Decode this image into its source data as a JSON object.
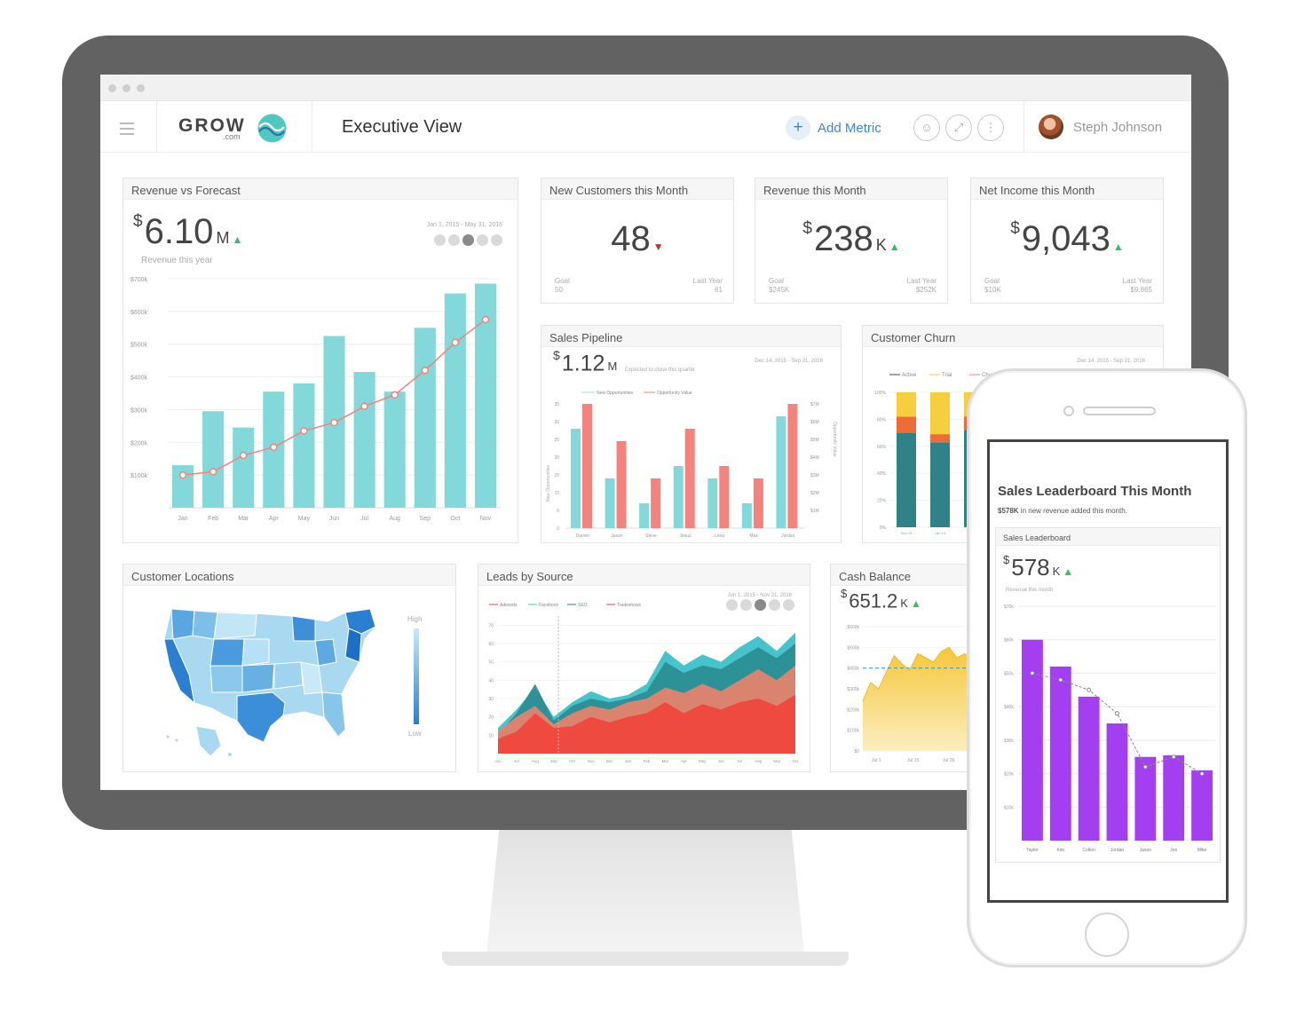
{
  "app": {
    "title": "Executive View",
    "logo_text": "GROW",
    "logo_suffix": ".com",
    "add_metric": "Add Metric",
    "user": "Steph Johnson",
    "header_icons": [
      "user-settings-icon",
      "expand-icon",
      "more-icon"
    ]
  },
  "colors": {
    "teal": "#83d8d9",
    "salmon": "#f4837d",
    "purple": "#a43ff1",
    "red": "#f0453c",
    "yellow": "#f6cf3f",
    "dark_teal": "#2f8286",
    "accent_blue": "#3b86d6",
    "up": "#2ec35b",
    "down": "#e0242c"
  },
  "revenue_forecast": {
    "title": "Revenue vs Forecast",
    "currency": "$",
    "value": "6.10",
    "unit": "M",
    "subtitle": "Revenue this year",
    "date_range": "Jan 1, 2015 - May 31, 2016",
    "range_buttons": [
      "D",
      "W",
      "M",
      "Q",
      "Y"
    ],
    "chart_data": {
      "type": "bar",
      "categories": [
        "Jan",
        "Feb",
        "Mar",
        "Apr",
        "May",
        "Jun",
        "Jul",
        "Aug",
        "Sep",
        "Oct",
        "Nov"
      ],
      "y_ticks": [
        "$700k",
        "$600k",
        "$500k",
        "$400k",
        "$300k",
        "$200k",
        "$100k"
      ],
      "ylim": [
        0,
        700000
      ],
      "series": [
        {
          "values": [
            130000,
            295000,
            245000,
            355000,
            380000,
            525000,
            415000,
            355000,
            550000,
            655000,
            685000
          ]
        },
        {
          "values": [
            100000,
            110000,
            160000,
            185000,
            235000,
            260000,
            310000,
            345000,
            420000,
            505000,
            575000
          ]
        }
      ]
    }
  },
  "kpis": [
    {
      "title": "New Customers this Month",
      "currency": "",
      "value": "48",
      "unit": "",
      "trend": "down",
      "goal_label": "Goal",
      "goal": "50",
      "last_label": "Last Year",
      "last": "61"
    },
    {
      "title": "Revenue this Month",
      "currency": "$",
      "value": "238",
      "unit": "K",
      "trend": "up",
      "goal_label": "Goal",
      "goal": "$245K",
      "last_label": "Last Year",
      "last": "$252K"
    },
    {
      "title": "Net Income this Month",
      "currency": "$",
      "value": "9,043",
      "unit": "",
      "trend": "up",
      "goal_label": "Goal",
      "goal": "$10K",
      "last_label": "Last Year",
      "last": "$9,865"
    }
  ],
  "sales_pipeline": {
    "title": "Sales Pipeline",
    "currency": "$",
    "value": "1.12",
    "unit": "M",
    "caption": "Expected to close this quarter",
    "date_range": "Dec 14, 2015 - Sep 31, 2016",
    "legend": [
      "New Opportunities",
      "Opportunity Value"
    ],
    "y_left_label": "New Opportunities",
    "y_right_label": "Opportunity Value",
    "chart_data": {
      "type": "bar",
      "categories": [
        "Darren",
        "Jason",
        "Steve",
        "Jesus",
        "Lena",
        "Max",
        "Jordan"
      ],
      "y_left_ticks": [
        "35",
        "30",
        "25",
        "20",
        "15",
        "10",
        "5",
        "0"
      ],
      "y_right_ticks": [
        "$7M",
        "$6M",
        "$5M",
        "$4M",
        "$3M",
        "$2M",
        "$1M"
      ],
      "ylim": [
        0,
        35
      ],
      "series": [
        {
          "name": "New Opportunities",
          "values": [
            28,
            14,
            7,
            17.5,
            14,
            7,
            31.5
          ]
        },
        {
          "name": "Opportunity Value",
          "values": [
            35,
            24.5,
            14,
            28,
            17.5,
            14,
            35
          ]
        }
      ]
    }
  },
  "customer_churn": {
    "title": "Customer Churn",
    "date_range": "Dec 14, 2015 - Sep 31, 2016",
    "legend": [
      "Active",
      "Trial",
      "Churned"
    ],
    "chart_data": {
      "type": "bar",
      "stacked": true,
      "categories": [
        "Dec 13",
        "Jan 14",
        "Feb 14"
      ],
      "y_ticks": [
        "100%",
        "80%",
        "60%",
        "40%",
        "20%",
        "0%"
      ],
      "ylim": [
        0,
        100
      ],
      "series": [
        {
          "name": "Active",
          "values": [
            70,
            63,
            72
          ]
        },
        {
          "name": "Trial",
          "values": [
            12,
            6,
            10
          ]
        },
        {
          "name": "Churned",
          "values": [
            18,
            31,
            18
          ]
        }
      ]
    }
  },
  "customer_locations": {
    "title": "Customer Locations",
    "legend_high": "High",
    "legend_low": "Low"
  },
  "leads_by_source": {
    "title": "Leads by Source",
    "date_range": "Jun 1, 2015 - Nov 31, 2016",
    "legend": [
      "Adwords",
      "Facebook",
      "SEO",
      "Tradeshows"
    ],
    "chart_data": {
      "type": "area",
      "categories": [
        "Jun",
        "Jul",
        "Aug",
        "Sep",
        "Oct",
        "Nov",
        "Dec",
        "Jan",
        "Feb",
        "Mar",
        "Apr",
        "May",
        "Jun",
        "Jul",
        "Aug",
        "Sep",
        "Oct"
      ],
      "y_ticks": [
        "70",
        "60",
        "50",
        "40",
        "30",
        "20",
        "10"
      ],
      "ylim": [
        0,
        75
      ],
      "series": [
        {
          "name": "Tradeshows",
          "values": [
            8,
            12,
            22,
            14,
            15,
            20,
            17,
            20,
            22,
            28,
            22,
            27,
            24,
            28,
            30,
            26,
            32
          ]
        },
        {
          "name": "SEO",
          "values": [
            12,
            20,
            26,
            16,
            22,
            26,
            24,
            28,
            30,
            36,
            33,
            38,
            34,
            40,
            46,
            40,
            48
          ]
        },
        {
          "name": "Facebook",
          "values": [
            14,
            24,
            36,
            20,
            28,
            34,
            30,
            32,
            38,
            56,
            48,
            54,
            50,
            58,
            64,
            56,
            66
          ]
        },
        {
          "name": "Adwords",
          "values": [
            10,
            22,
            38,
            18,
            26,
            30,
            28,
            30,
            34,
            50,
            44,
            48,
            46,
            52,
            58,
            52,
            60
          ]
        }
      ]
    }
  },
  "cash_balance": {
    "title": "Cash Balance",
    "currency": "$",
    "value": "651.2",
    "unit": "K",
    "y_ticks": [
      "$600k",
      "$500k",
      "$400k",
      "$300k",
      "$200k",
      "$100k",
      "$0"
    ],
    "x_ticks": [
      "Jul 1",
      "Jul 15",
      "Jul 29"
    ],
    "chart_data": {
      "type": "area",
      "ylim": [
        0,
        600000
      ],
      "values": [
        240000,
        330000,
        300000,
        380000,
        460000,
        420000,
        390000,
        470000,
        450000,
        430000,
        480000,
        500000,
        450000,
        470000,
        430000,
        460000,
        420000,
        300000,
        260000,
        280000,
        320000,
        240000,
        300000,
        220000,
        280000
      ]
    }
  },
  "phone": {
    "title": "Sales Leaderboard This Month",
    "sub_bold": "$578K",
    "sub_rest": " in new revenue added this month.",
    "card_title": "Sales Leaderboard",
    "currency": "$",
    "value": "578",
    "unit": "K",
    "caption": "Revenue this month",
    "chart_data": {
      "type": "bar",
      "categories": [
        "Taylor",
        "Kim",
        "Colton",
        "Jordan",
        "Jason",
        "Jon",
        "Mike"
      ],
      "y_ticks": [
        "$70k",
        "$60k",
        "$50k",
        "$40k",
        "$30k",
        "$20k",
        "$10k"
      ],
      "ylim": [
        0,
        70000
      ],
      "series": [
        {
          "values": [
            60000,
            52000,
            43000,
            35000,
            25000,
            25500,
            21000
          ]
        },
        {
          "values": [
            50000,
            48000,
            45000,
            38000,
            22000,
            25000,
            20000
          ]
        }
      ]
    }
  }
}
